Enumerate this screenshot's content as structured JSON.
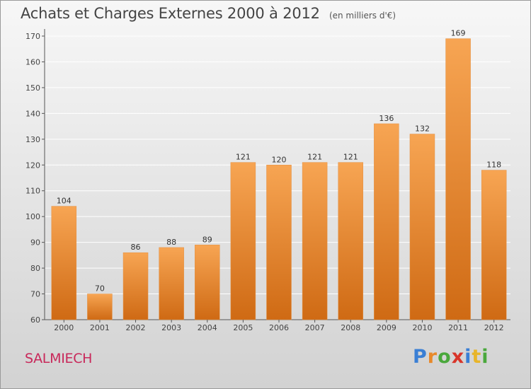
{
  "header": {
    "title": "Achats et Charges Externes 2000 à 2012",
    "unit": "(en milliers d'€)"
  },
  "footer": {
    "place": "SALMIECH",
    "brand": "Proxiti",
    "brand_colors": [
      "#3a7fd5",
      "#e8892a",
      "#4aa83c",
      "#d8352a",
      "#3a7fd5",
      "#e8b52a",
      "#4aa83c"
    ]
  },
  "colors": {
    "bar_light": "#f7a553",
    "bar_dark": "#cf6a14",
    "grid": "#ffffff",
    "axis": "#555555"
  },
  "chart_data": {
    "type": "bar",
    "title": "Achats et Charges Externes 2000 à 2012",
    "subtitle": "(en milliers d'€)",
    "categories": [
      "2000",
      "2001",
      "2002",
      "2003",
      "2004",
      "2005",
      "2006",
      "2007",
      "2008",
      "2009",
      "2010",
      "2011",
      "2012"
    ],
    "values": [
      104,
      70,
      86,
      88,
      89,
      121,
      120,
      121,
      121,
      136,
      132,
      169,
      118
    ],
    "ylim": [
      60,
      170
    ],
    "yticks": [
      60,
      70,
      80,
      90,
      100,
      110,
      120,
      130,
      140,
      150,
      160,
      170
    ],
    "grid": true,
    "xlabel": "",
    "ylabel": ""
  }
}
